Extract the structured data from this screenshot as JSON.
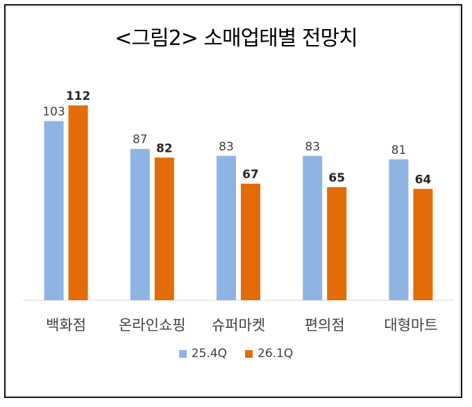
{
  "chart_data": {
    "type": "bar",
    "title": "<그림2> 소매업태별 전망치",
    "categories": [
      "백화점",
      "온라인쇼핑",
      "슈퍼마켓",
      "편의점",
      "대형마트"
    ],
    "series": [
      {
        "name": "25.4Q",
        "values": [
          103,
          87,
          83,
          83,
          81
        ],
        "color": "#8eb4e3",
        "label_bold": false
      },
      {
        "name": "26.1Q",
        "values": [
          112,
          82,
          67,
          65,
          64
        ],
        "color": "#e36c09",
        "label_bold": true
      }
    ],
    "ylim": [
      0,
      120
    ],
    "grid": false,
    "legend_position": "bottom"
  }
}
